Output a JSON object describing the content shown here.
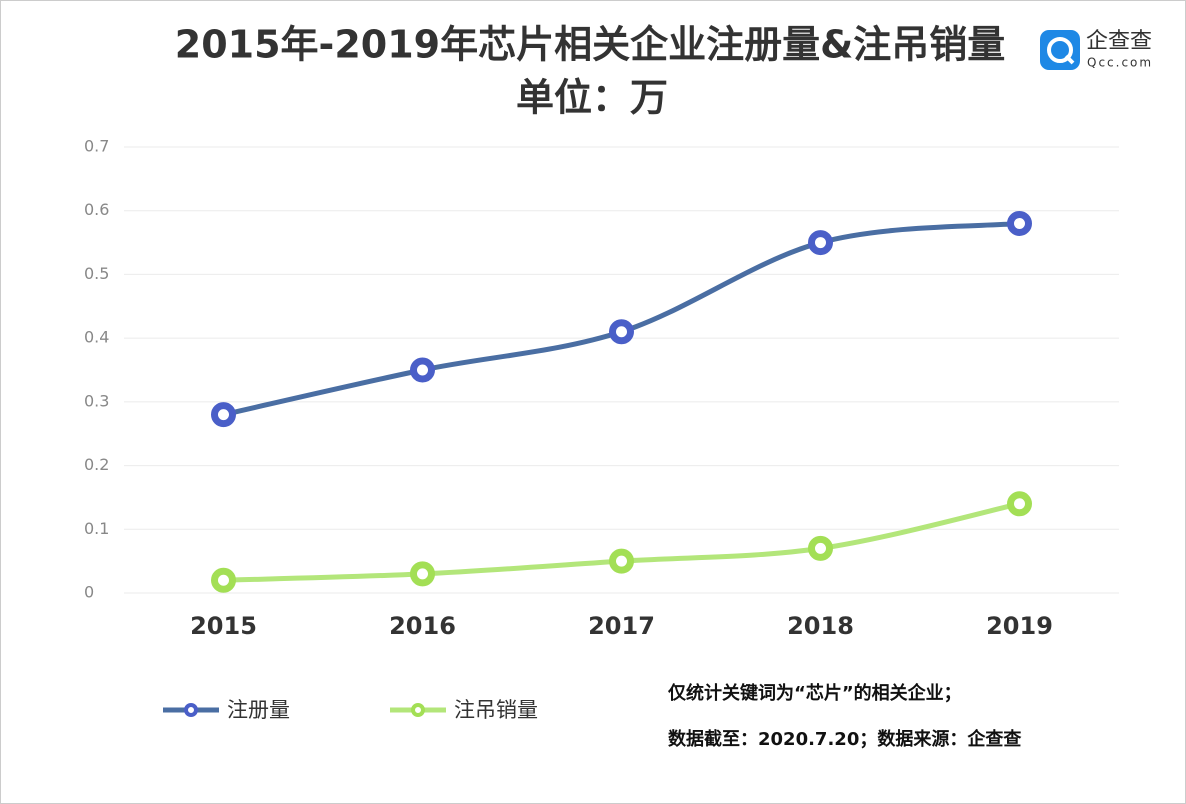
{
  "chart_data": {
    "type": "line",
    "title": "2015年-2019年芯片相关企业注册量&注吊销量",
    "subtitle": "单位：万",
    "logo": {
      "name": "企查查",
      "url": "Qcc.com"
    },
    "categories": [
      "2015",
      "2016",
      "2017",
      "2018",
      "2019"
    ],
    "series": [
      {
        "name": "注册量",
        "color": "#4a6ea3",
        "marker_color": "#4a5fc8",
        "values": [
          0.28,
          0.35,
          0.41,
          0.55,
          0.58
        ]
      },
      {
        "name": "注吊销量",
        "color": "#b3e67a",
        "marker_color": "#a3df55",
        "values": [
          0.02,
          0.03,
          0.05,
          0.07,
          0.14
        ]
      }
    ],
    "ylim": [
      0,
      0.7
    ],
    "yticks": [
      0,
      0.1,
      0.2,
      0.3,
      0.4,
      0.5,
      0.6,
      0.7
    ],
    "grid": true,
    "smooth": true,
    "legend": "bottom-left",
    "notes": [
      "仅统计关键词为“芯片”的相关企业；",
      "数据截至：2020.7.20；数据来源：企查查"
    ]
  }
}
